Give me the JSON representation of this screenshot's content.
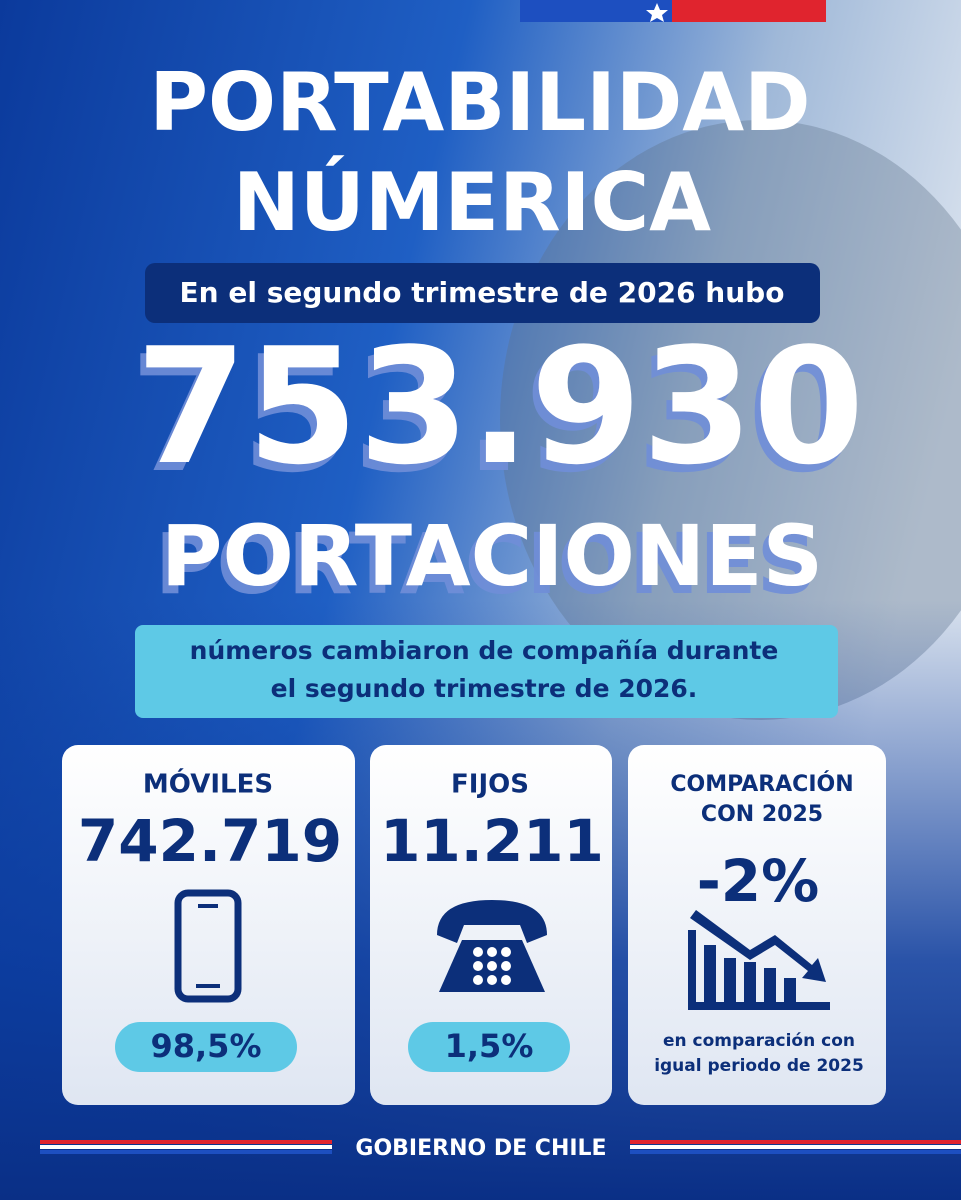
{
  "header": {
    "title_lines": [
      "PORTABILIDAD",
      "NÚMERICA"
    ],
    "intro": "En el segundo trimestre de 2026 hubo"
  },
  "headline": {
    "number": "753.930",
    "unit": "PORTACIONES",
    "description_lines": [
      "números cambiaron de compañía durante",
      "el segundo trimestre de 2026."
    ]
  },
  "cards": [
    {
      "title_lines": [
        "MÓVILES"
      ],
      "value": "742.719",
      "share": "98,5%"
    },
    {
      "title_lines": [
        "FIJOS"
      ],
      "value": "11.211",
      "share": "1,5%"
    },
    {
      "title_lines": [
        "COMPARACIÓN",
        "CON 2025"
      ],
      "value": "-2%",
      "note_lines": [
        "en comparación con",
        "igual periodo de 2025"
      ]
    }
  ],
  "footer": {
    "label": "GOBIERNO DE CHILE"
  }
}
